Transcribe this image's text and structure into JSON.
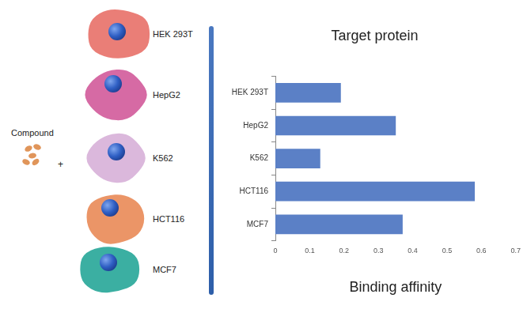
{
  "chart_data": {
    "type": "bar",
    "orientation": "horizontal",
    "title": "Target protein",
    "x_label": "Binding affinity",
    "categories": [
      "HEK 293T",
      "HepG2",
      "K562",
      "HCT116",
      "MCF7"
    ],
    "values": [
      0.19,
      0.35,
      0.13,
      0.58,
      0.37
    ],
    "color": "#5b80c6",
    "xlim": [
      0,
      0.7
    ],
    "xticks": [
      0,
      0.1,
      0.2,
      0.3,
      0.4,
      0.5,
      0.6,
      0.7
    ],
    "grid": false
  },
  "diagram": {
    "compound_label": "Compound",
    "operator": "+"
  }
}
